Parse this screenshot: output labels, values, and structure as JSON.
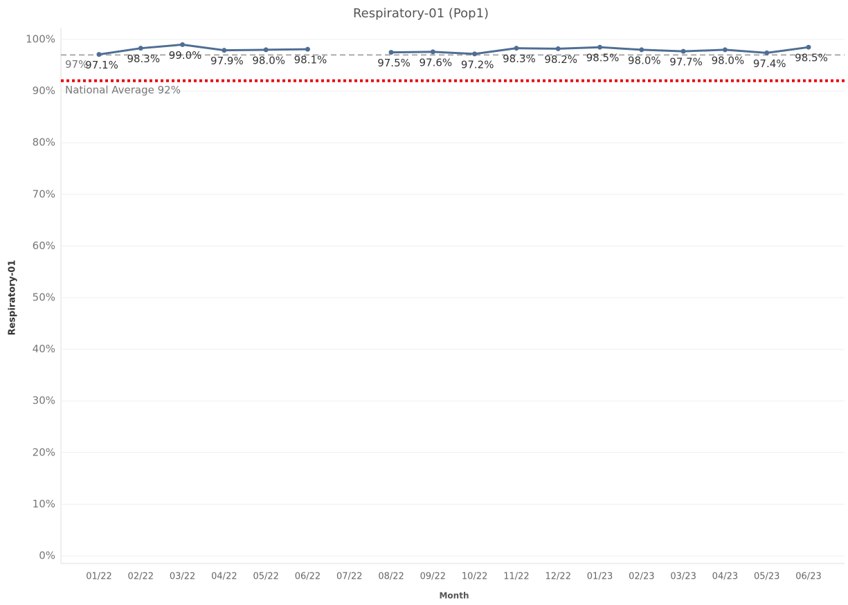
{
  "chart_data": {
    "type": "line",
    "title": "Respiratory-01 (Pop1)",
    "y_label": "Respiratory-01",
    "x_label": "Month",
    "categories": [
      "01/22",
      "02/22",
      "03/22",
      "04/22",
      "05/22",
      "06/22",
      "07/22",
      "08/22",
      "09/22",
      "10/22",
      "11/22",
      "12/22",
      "01/23",
      "02/23",
      "03/23",
      "04/23",
      "05/23",
      "06/23"
    ],
    "series": [
      {
        "name": "Respiratory-01",
        "color": "#4e6e94",
        "values": [
          97.1,
          98.3,
          99.0,
          97.9,
          98.0,
          98.1,
          null,
          97.5,
          97.6,
          97.2,
          98.3,
          98.2,
          98.5,
          98.0,
          97.7,
          98.0,
          97.4,
          98.5
        ],
        "value_labels": [
          "97.1%",
          "98.3%",
          "99.0%",
          "97.9%",
          "98.0%",
          "98.1%",
          null,
          "97.5%",
          "97.6%",
          "97.2%",
          "98.3%",
          "98.2%",
          "98.5%",
          "98.0%",
          "97.7%",
          "98.0%",
          "97.4%",
          "98.5%"
        ]
      }
    ],
    "reference_lines": [
      {
        "value": 97,
        "label": "97%",
        "color": "#aaaaaa",
        "style": "dashed"
      },
      {
        "value": 92,
        "label": "National Average 92%",
        "color": "#e8000b",
        "style": "dotted"
      }
    ],
    "ylim": [
      0,
      100
    ],
    "yticks": [
      {
        "value": 0,
        "label": "0%"
      },
      {
        "value": 10,
        "label": "10%"
      },
      {
        "value": 20,
        "label": "20%"
      },
      {
        "value": 30,
        "label": "30%"
      },
      {
        "value": 40,
        "label": "40%"
      },
      {
        "value": 50,
        "label": "50%"
      },
      {
        "value": 60,
        "label": "60%"
      },
      {
        "value": 70,
        "label": "70%"
      },
      {
        "value": 80,
        "label": "80%"
      },
      {
        "value": 90,
        "label": "90%"
      },
      {
        "value": 100,
        "label": "100%"
      }
    ],
    "grid": true
  }
}
